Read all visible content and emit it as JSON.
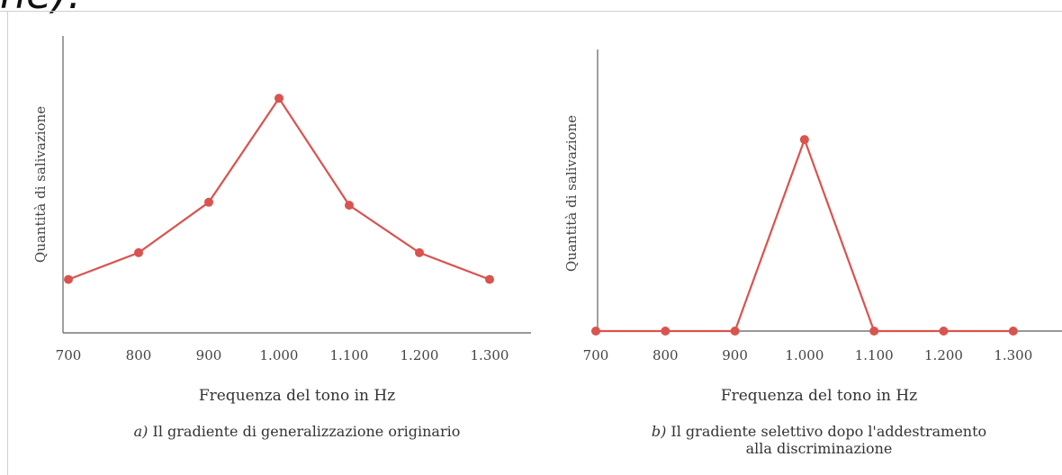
{
  "header_fragment": "ne).",
  "chart_data": [
    {
      "type": "line",
      "panel_letter": "a)",
      "caption": "Il gradiente di generalizzazione originario",
      "xlabel": "Frequenza del tono in Hz",
      "ylabel": "Quantità di salivazione",
      "categories": [
        "700",
        "800",
        "900",
        "1.000",
        "1.100",
        "1.200",
        "1.300"
      ],
      "values": [
        18,
        27,
        44,
        79,
        43,
        27,
        18
      ],
      "ylim": [
        0,
        100
      ],
      "color": "#d9534f",
      "grid": false,
      "legend": "none"
    },
    {
      "type": "line",
      "panel_letter": "b)",
      "caption": "Il gradiente selettivo dopo l'addestramento alla discriminazione",
      "caption_line1": "Il gradiente selettivo dopo l'addestramento",
      "caption_line2": "alla discriminazione",
      "xlabel": "Frequenza del tono in Hz",
      "ylabel": "Quantità di salivazione",
      "categories": [
        "700",
        "800",
        "900",
        "1.000",
        "1.100",
        "1.200",
        "1.300"
      ],
      "values": [
        0,
        0,
        0,
        68,
        0,
        0,
        0
      ],
      "ylim": [
        0,
        100
      ],
      "color": "#d9534f",
      "grid": false,
      "legend": "none"
    }
  ]
}
